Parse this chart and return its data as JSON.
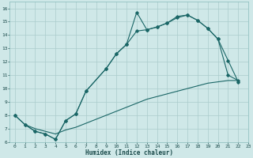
{
  "xlabel": "Humidex (Indice chaleur)",
  "bg_color": "#cfe8e8",
  "grid_color": "#aacccc",
  "line_color": "#1a6666",
  "xlim": [
    -0.5,
    23
  ],
  "ylim": [
    6,
    16.5
  ],
  "xticks": [
    0,
    1,
    2,
    3,
    4,
    5,
    6,
    7,
    8,
    9,
    10,
    11,
    12,
    13,
    14,
    15,
    16,
    17,
    18,
    19,
    20,
    21,
    22,
    23
  ],
  "yticks": [
    6,
    7,
    8,
    9,
    10,
    11,
    12,
    13,
    14,
    15,
    16
  ],
  "line1_x": [
    0,
    1,
    2,
    3,
    4,
    5,
    6,
    7,
    9,
    10,
    11,
    12,
    13,
    14,
    15,
    16,
    17,
    18,
    19,
    20,
    21,
    22
  ],
  "line1_y": [
    8.0,
    7.3,
    6.8,
    6.6,
    6.2,
    7.6,
    8.1,
    9.8,
    11.5,
    12.6,
    13.3,
    15.7,
    14.4,
    14.6,
    14.9,
    15.4,
    15.5,
    15.1,
    14.5,
    13.7,
    11.0,
    10.6
  ],
  "line2_x": [
    0,
    1,
    2,
    3,
    4,
    5,
    6,
    7,
    9,
    10,
    11,
    12,
    13,
    14,
    15,
    16,
    17,
    18,
    19,
    20,
    21,
    22
  ],
  "line2_y": [
    8.0,
    7.3,
    6.8,
    6.6,
    6.2,
    7.6,
    8.1,
    9.8,
    11.5,
    12.6,
    13.3,
    14.3,
    14.4,
    14.6,
    14.9,
    15.3,
    15.5,
    15.1,
    14.5,
    13.7,
    12.1,
    10.5
  ],
  "line3_x": [
    1,
    2,
    3,
    4,
    5,
    6,
    7,
    8,
    9,
    10,
    11,
    12,
    13,
    14,
    15,
    16,
    17,
    18,
    19,
    20,
    21,
    22
  ],
  "line3_y": [
    7.3,
    7.0,
    6.8,
    6.6,
    6.9,
    7.1,
    7.4,
    7.7,
    8.0,
    8.3,
    8.6,
    8.9,
    9.2,
    9.4,
    9.6,
    9.8,
    10.0,
    10.2,
    10.4,
    10.5,
    10.6,
    10.6
  ]
}
